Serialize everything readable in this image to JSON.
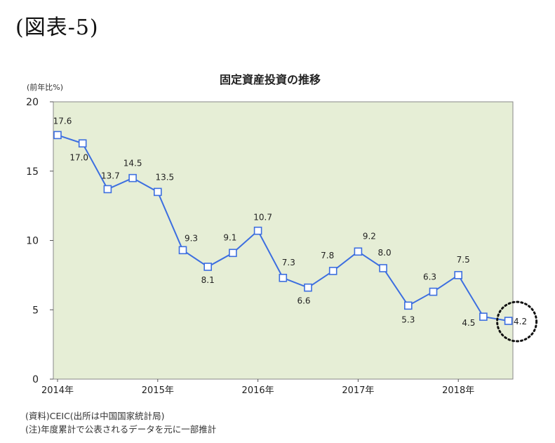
{
  "figure_label": "(図表-5)",
  "notes": [
    "(資料)CEIC(出所は中国国家統計局)",
    "(注)年度累計で公表されるデータを元に一部推計"
  ],
  "colors": {
    "plot_background": "#e6eed6",
    "line": "#3c6ee0",
    "marker_fill": "#ffffff",
    "highlight_circle": "#111111"
  },
  "chart_data": {
    "type": "line",
    "title": "固定資産投資の推移",
    "ylabel": "(前年比%)",
    "xlabel": "",
    "ylim": [
      0,
      20
    ],
    "yticks": [
      0,
      5,
      10,
      15,
      20
    ],
    "x_tick_labels": [
      "2014年",
      "2015年",
      "2016年",
      "2017年",
      "2018年"
    ],
    "grid": false,
    "series": [
      {
        "values": [
          17.6,
          17.0,
          13.7,
          14.5,
          13.5,
          9.3,
          8.1,
          9.1,
          10.7,
          7.3,
          6.6,
          7.8,
          9.2,
          8.0,
          5.3,
          6.3,
          7.5,
          4.5,
          4.2
        ],
        "labels": [
          "17.6",
          "17.0",
          "13.7",
          "14.5",
          "13.5",
          "9.3",
          "8.1",
          "9.1",
          "10.7",
          "7.3",
          "6.6",
          "7.8",
          "9.2",
          "8.0",
          "5.3",
          "6.3",
          "7.5",
          "4.5",
          "4.2"
        ]
      }
    ],
    "highlighted_point": "4.2"
  }
}
